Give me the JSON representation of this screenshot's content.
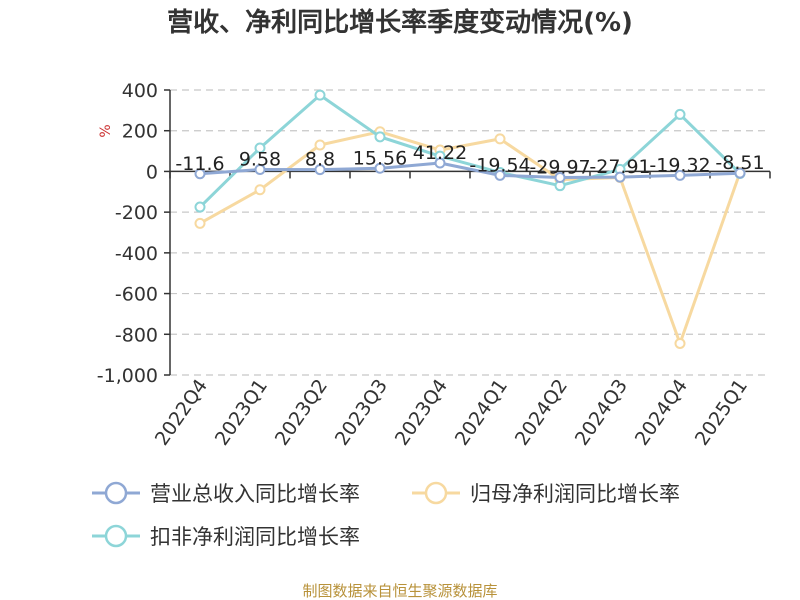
{
  "chart_data": {
    "type": "line",
    "title": "营收、净利同比增长率季度变动情况(%)",
    "ylabel": "%",
    "ylim": [
      -1000,
      400
    ],
    "yticks": [
      400,
      200,
      0,
      -200,
      -400,
      -600,
      -800,
      -1000
    ],
    "ytick_labels": [
      "400",
      "200",
      "0",
      "-200",
      "-400",
      "-600",
      "-800",
      "-1,000"
    ],
    "categories": [
      "2022Q4",
      "2023Q1",
      "2023Q2",
      "2023Q3",
      "2023Q4",
      "2024Q1",
      "2024Q2",
      "2024Q3",
      "2024Q4",
      "2025Q1"
    ],
    "grid": true,
    "legend_position": "bottom",
    "series": [
      {
        "name": "营业总收入同比增长率",
        "color": "#8fa8d4",
        "values": [
          -11.6,
          9.58,
          8.8,
          15.56,
          41.22,
          -19.54,
          -29.97,
          -27.91,
          -19.32,
          -8.51
        ],
        "labels": [
          "-11.6",
          "9.58",
          "8.8",
          "15.56",
          "41.22",
          "-19.54",
          "-29.97",
          "-27.91",
          "-19.32",
          "-8.51"
        ]
      },
      {
        "name": "归母净利润同比增长率",
        "color": "#f7d9a0",
        "values": [
          -255,
          -90,
          130,
          195,
          105,
          160,
          -40,
          -30,
          -845,
          -5
        ]
      },
      {
        "name": "扣非净利润同比增长率",
        "color": "#8dd5d8",
        "values": [
          -175,
          115,
          375,
          170,
          75,
          -5,
          -70,
          10,
          280,
          -10
        ]
      }
    ]
  },
  "source": "制图数据来自恒生聚源数据库"
}
